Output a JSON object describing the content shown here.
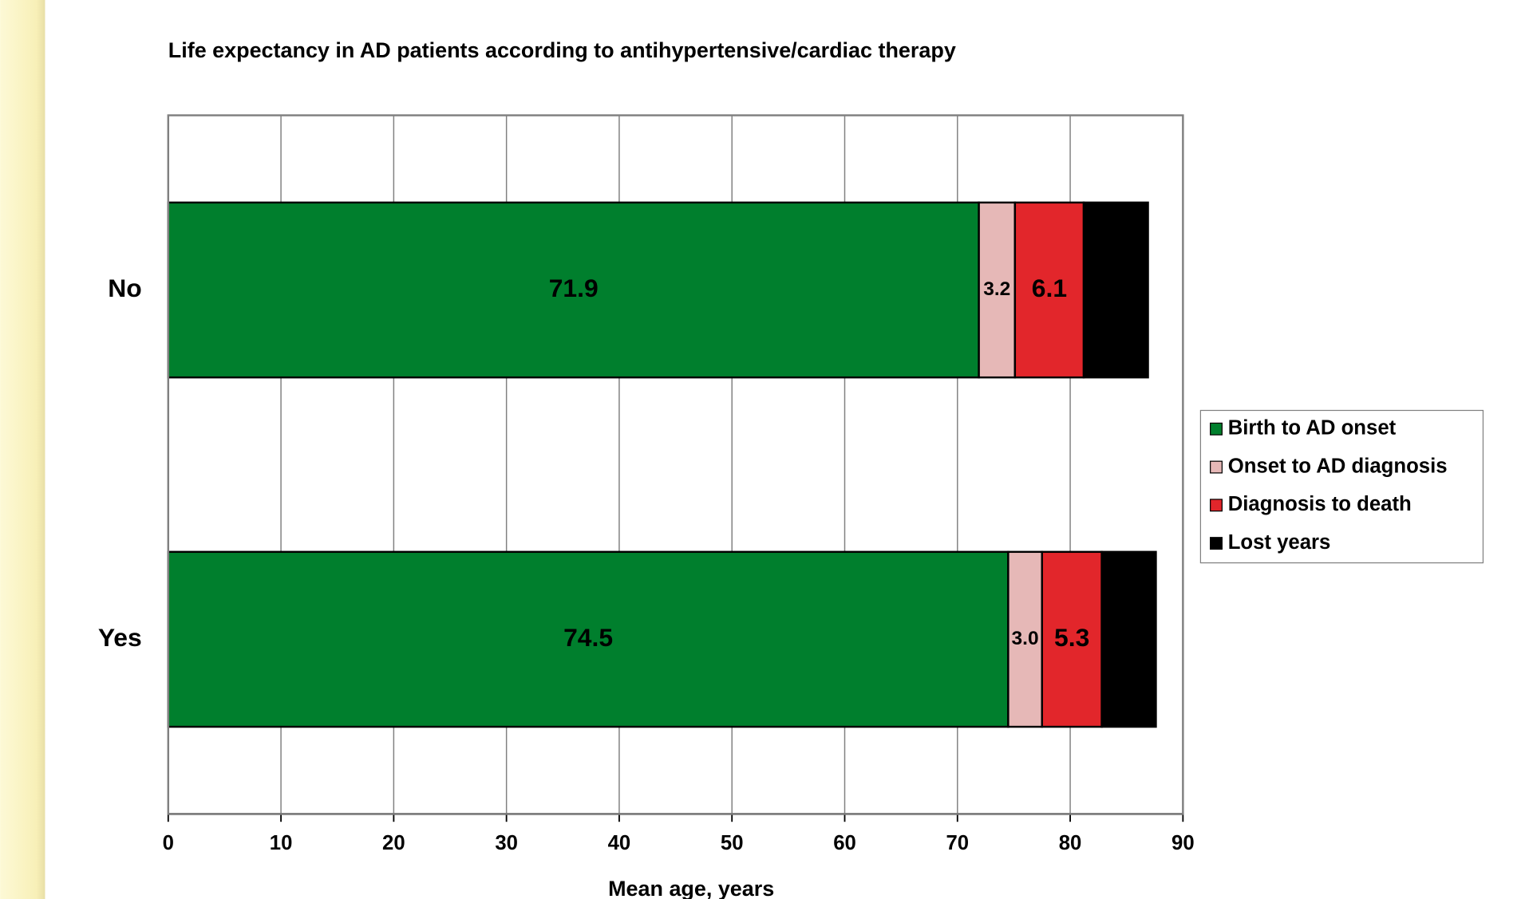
{
  "chart_data": {
    "type": "stacked-barh",
    "title": "Life expectancy in AD patients according to antihypertensive/cardiac therapy",
    "categories": [
      "No",
      "Yes"
    ],
    "series": [
      {
        "name": "Birth to AD onset",
        "color": "#007f2d",
        "label_color": "#ffffff",
        "values": [
          71.9,
          74.5
        ],
        "value_labels": [
          "71.9",
          "74.5"
        ]
      },
      {
        "name": "Onset to AD diagnosis",
        "color": "#e6b8b7",
        "label_color": "#000000",
        "values": [
          3.2,
          3.0
        ],
        "value_labels": [
          "3.2",
          "3.0"
        ]
      },
      {
        "name": "Diagnosis to death",
        "color": "#e2262b",
        "label_color": "#ffffff",
        "values": [
          6.1,
          5.3
        ],
        "value_labels": [
          "6.1",
          "5.3"
        ]
      },
      {
        "name": "Lost years",
        "color": "#000000",
        "label_color": "#ffffff",
        "values": [
          5.7,
          4.8
        ],
        "value_labels": [
          "5.7",
          "4.8"
        ]
      }
    ],
    "xlabel": "Mean age, years",
    "xlim": [
      0,
      90
    ],
    "xticks": [
      0,
      10,
      20,
      30,
      40,
      50,
      60,
      70,
      80,
      90
    ],
    "grid": true,
    "legend": "right"
  }
}
